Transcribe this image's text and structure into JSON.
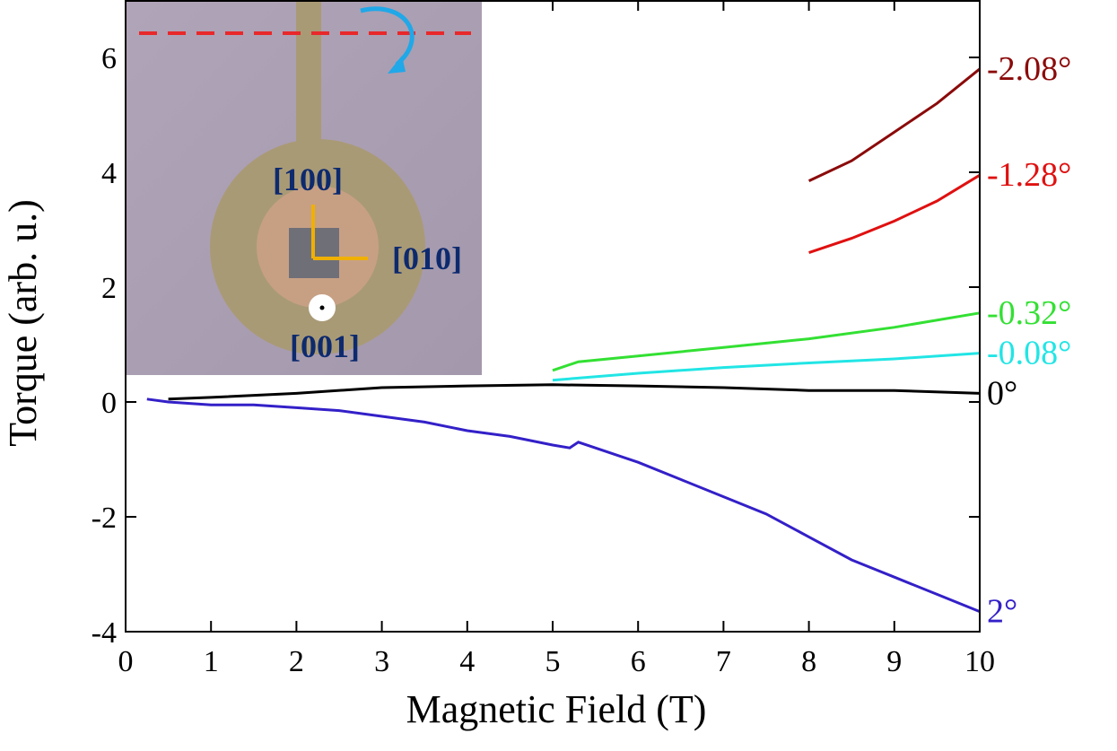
{
  "chart_data": {
    "type": "line",
    "x_label": "Magnetic Field (T)",
    "y_label": "Torque (arb. u.)",
    "xlim": [
      0,
      10
    ],
    "ylim": [
      -4,
      7
    ],
    "xticks": [
      0,
      1,
      2,
      3,
      4,
      5,
      6,
      7,
      8,
      9,
      10
    ],
    "yticks": [
      -4,
      -2,
      0,
      2,
      4,
      6
    ],
    "series": [
      {
        "name": "-2.08°",
        "color": "#8b0a0a",
        "x": [
          8,
          8.5,
          9,
          9.5,
          10
        ],
        "values": [
          3.85,
          4.2,
          4.7,
          5.2,
          5.8
        ]
      },
      {
        "name": "-1.28°",
        "color": "#e01010",
        "x": [
          8,
          8.5,
          9,
          9.5,
          10
        ],
        "values": [
          2.6,
          2.85,
          3.15,
          3.5,
          3.95
        ]
      },
      {
        "name": "-0.32°",
        "color": "#33e033",
        "x": [
          5,
          5.3,
          6,
          7,
          8,
          9,
          10
        ],
        "values": [
          0.55,
          0.7,
          0.8,
          0.95,
          1.1,
          1.3,
          1.55
        ]
      },
      {
        "name": "-0.08°",
        "color": "#22e5e5",
        "x": [
          5,
          6,
          7,
          8,
          9,
          10
        ],
        "values": [
          0.38,
          0.5,
          0.6,
          0.68,
          0.75,
          0.85
        ]
      },
      {
        "name": "0°",
        "color": "#000000",
        "x": [
          0.5,
          1,
          2,
          3,
          4,
          5,
          6,
          7,
          8,
          9,
          10
        ],
        "values": [
          0.05,
          0.08,
          0.15,
          0.25,
          0.28,
          0.3,
          0.28,
          0.25,
          0.2,
          0.2,
          0.15
        ]
      },
      {
        "name": "2°",
        "color": "#3320c8",
        "x": [
          0.25,
          0.5,
          1,
          1.5,
          2,
          2.5,
          3,
          3.5,
          4,
          4.5,
          5,
          5.2,
          5.3,
          5.5,
          6,
          6.5,
          7,
          7.5,
          8,
          8.5,
          9,
          9.5,
          10
        ],
        "values": [
          0.05,
          0,
          -0.05,
          -0.05,
          -0.1,
          -0.15,
          -0.25,
          -0.35,
          -0.5,
          -0.6,
          -0.75,
          -0.8,
          -0.7,
          -0.8,
          -1.05,
          -1.35,
          -1.65,
          -1.95,
          -2.35,
          -2.75,
          -3.05,
          -3.35,
          -3.65
        ]
      }
    ],
    "inset_labels": [
      "[100]",
      "[010]",
      "[001]"
    ]
  }
}
